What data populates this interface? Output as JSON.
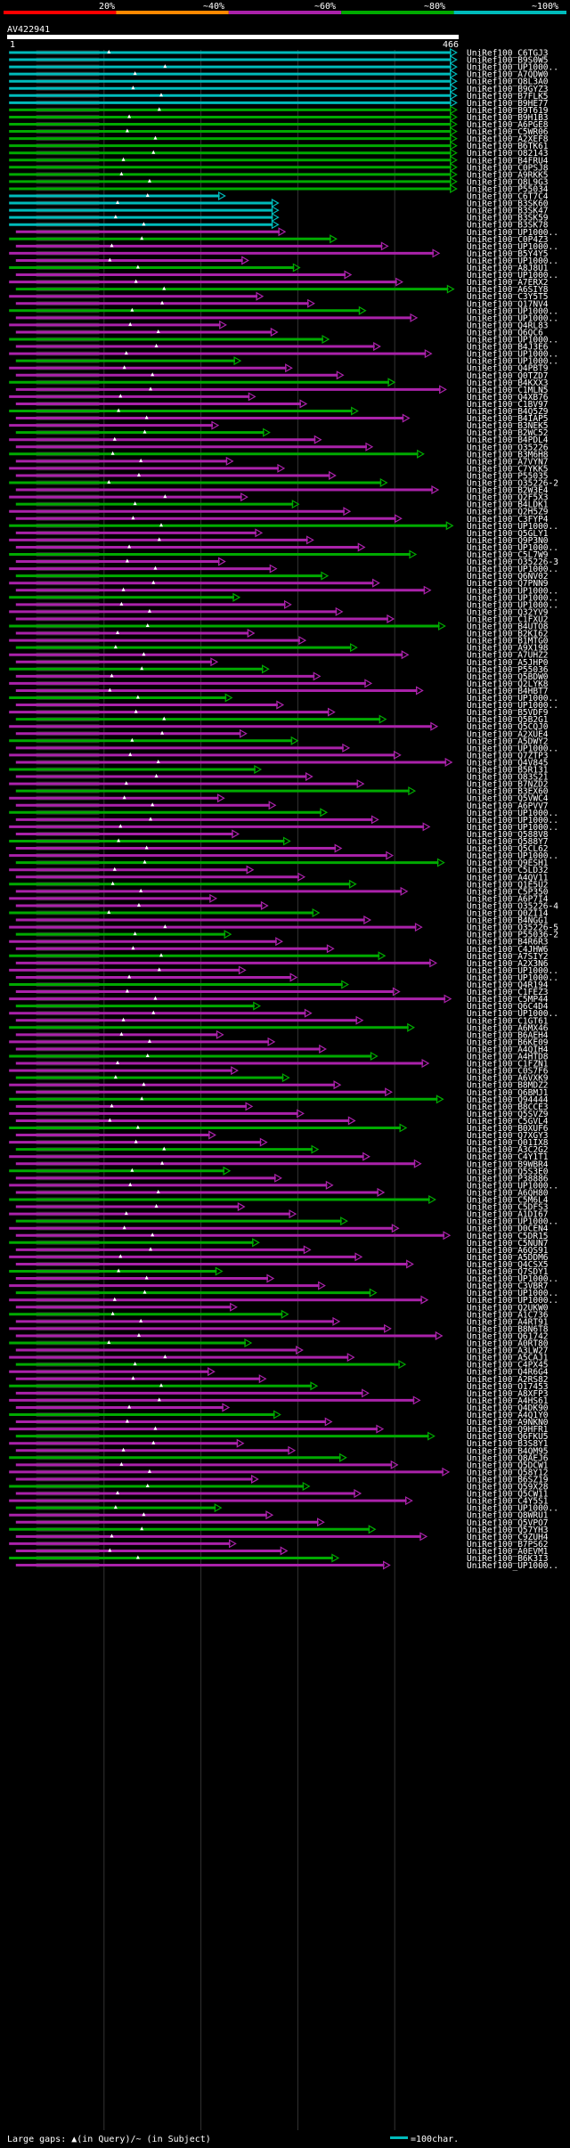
{
  "chart_data": {
    "type": "alignment-overview",
    "title": "AV422941",
    "query_length": 466,
    "axis_start_label": "1",
    "axis_end_label": "466",
    "legend_top": {
      "ticks": [
        "20%",
        "~40%",
        "~60%",
        "~80%",
        "~100%"
      ],
      "colors": [
        "#ff0000",
        "#ff8800",
        "#aa22aa",
        "#00aa00",
        "#00bbbb"
      ]
    },
    "footer": {
      "gaps_text": "Large gaps: ▲(in Query)/~ (in Subject)",
      "scale_text": "=100char.",
      "scale_color": "#00bbbb"
    },
    "hits": [
      "UniRef100_C6TGJ3",
      "UniRef100_B9S0W5",
      "UniRef100_UP1000..",
      "UniRef100_A7QDW0",
      "UniRef100_Q8L3A0",
      "UniRef100_B9GYZ3",
      "UniRef100_B7FLK5",
      "UniRef100_B9HE77",
      "UniRef100_B9T619",
      "UniRef100_B9H1B3",
      "UniRef100_A6PGE8",
      "UniRef100_C5WR06",
      "UniRef100_A2XEF8",
      "UniRef100_B6TK61",
      "UniRef100_O82143",
      "UniRef100_B4FRU4",
      "UniRef100_C0PSJ8",
      "UniRef100_A9RKK5",
      "UniRef100_Q8L9G3",
      "UniRef100_P55034",
      "UniRef100_C6T7C4",
      "UniRef100_B3SK60",
      "UniRef100_B3SK47",
      "UniRef100_B3SK59",
      "UniRef100_B3SK78",
      "UniRef100_UP1000..",
      "UniRef100_C0P4Z3",
      "UniRef100_UP1000..",
      "UniRef100_B5Y4Y5",
      "UniRef100_UP1000..",
      "UniRef100_A8J8U1",
      "UniRef100_UP1000..",
      "UniRef100_A7ERX2",
      "UniRef100_A6SIY8",
      "UniRef100_C3Y5T5",
      "UniRef100_Q17NV4",
      "UniRef100_UP1000..",
      "UniRef100_UP1000..",
      "UniRef100_Q4RL83",
      "UniRef100_Q6QC6",
      "UniRef100_UP1000..",
      "UniRef100_B4J3E6",
      "UniRef100_UP1000..",
      "UniRef100_UP1000..",
      "UniRef100_Q4PBT9",
      "UniRef100_Q0TZD7",
      "UniRef100_B4KXX3",
      "UniRef100_C1MLN5",
      "UniRef100_Q4XB76",
      "UniRef100_C1BV97",
      "UniRef100_B4Q5Z9",
      "UniRef100_B4IAP5",
      "UniRef100_B3NEK5",
      "UniRef100_B2WC52",
      "UniRef100_B4PDL4",
      "UniRef100_O35226",
      "UniRef100_B3M6H8",
      "UniRef100_A7VYN7",
      "UniRef100_C7YKK5",
      "UniRef100_P55035",
      "UniRef100_O35226-2",
      "UniRef100_B2W3E4",
      "UniRef100_Q2F5X3",
      "UniRef100_B4LDK1",
      "UniRef100_Q2H5Z9",
      "UniRef100_C3FYP4",
      "UniRef100_UP1000..",
      "UniRef100_Q5GLY1",
      "UniRef100_Q9P3N0",
      "UniRef100_UP1000..",
      "UniRef100_C5L7W9",
      "UniRef100_O35226-3",
      "UniRef100_UP1000..",
      "UniRef100_Q6NV02",
      "UniRef100_Q7PNN9",
      "UniRef100_UP1000..",
      "UniRef100_UP1000..",
      "UniRef100_UP1000..",
      "UniRef100_Q32YV9",
      "UniRef100_C1FXU2",
      "UniRef100_B4UTO8",
      "UniRef100_B2KI62",
      "UniRef100_B1MTG0",
      "UniRef100_A9X198",
      "UniRef100_A7UHZ2",
      "UniRef100_A5JHP0",
      "UniRef100_P55036",
      "UniRef100_Q5BDW0",
      "UniRef100_Q2LYK8",
      "UniRef100_B4HBT7",
      "UniRef100_UP1000..",
      "UniRef100_UP1000..",
      "UniRef100_B5VDF9",
      "UniRef100_Q5B2G1",
      "UniRef100_Q5CQJ0",
      "UniRef100_A2XUE4",
      "UniRef100_A5DWY2",
      "UniRef100_UP1000..",
      "UniRef100_Q7ZTP3",
      "UniRef100_Q4V845",
      "UniRef100_B5R131",
      "UniRef100_O83S21",
      "UniRef100_B7NZD2",
      "UniRef100_B3EX60",
      "UniRef100_Q5VWC4",
      "UniRef100_A6PVV7",
      "UniRef100_UP1000..",
      "UniRef100_UP1000..",
      "UniRef100_UP1000..",
      "UniRef100_Q588V8",
      "UniRef100_Q588Y7",
      "UniRef100_Q5CL62",
      "UniRef100_UP1000..",
      "UniRef100_Q9ESH1",
      "UniRef100_C5LD32",
      "UniRef100_A4QV11",
      "UniRef100_Q1E5U2",
      "UniRef100_C5P350",
      "UniRef100_A6P7I4",
      "UniRef100_O35226-4",
      "UniRef100_Q0ZI14",
      "UniRef100_B4NGG1",
      "UniRef100_O35226-5",
      "UniRef100_P55036-2",
      "UniRef100_B4R6R3",
      "UniRef100_C4JHW6",
      "UniRef100_A7SIY2",
      "UniRef100_A2X3N6",
      "UniRef100_UP1000..",
      "UniRef100_UP1000..",
      "UniRef100_Q4R194",
      "UniRef100_C1FEZ3",
      "UniRef100_C5MP44",
      "UniRef100_Q6C4D4",
      "UniRef100_UP1000..",
      "UniRef100_C1GT61",
      "UniRef100_A6MX46",
      "UniRef100_B6AEH4",
      "UniRef100_B6KE09",
      "UniRef100_A4QIH4",
      "UniRef100_A4HTD8",
      "UniRef100_C1FZN1",
      "UniRef100_C0S7F6",
      "UniRef100_A6VXK9",
      "UniRef100_B8MDZ2",
      "UniRef100_Q6BMJ1",
      "UniRef100_Q94444",
      "UniRef100_B8CCE3",
      "UniRef100_Q5SVZ9",
      "UniRef100_C5GVL4",
      "UniRef100_B0XUF6",
      "UniRef100_Q7XGY3",
      "UniRef100_Q01IX8",
      "UniRef100_A3C2G2",
      "UniRef100_C4Y1T1",
      "UniRef100_B9WBR4",
      "UniRef100_Q5S3E0",
      "UniRef100_P38886",
      "UniRef100_UP1000..",
      "UniRef100_A6QH80",
      "UniRef100_C5M6L4",
      "UniRef100_C5DFS3",
      "UniRef100_A1DI67",
      "UniRef100_UP1000..",
      "UniRef100_D0CEN4",
      "UniRef100_C5DR15",
      "UniRef100_C5NUN7",
      "UniRef100_A6QS91",
      "UniRef100_A5DDM6",
      "UniRef100_Q4CSX5",
      "UniRef100_Q7SDY1",
      "UniRef100_UP1000..",
      "UniRef100_C3VBR7",
      "UniRef100_UP1000..",
      "UniRef100_UP1000..",
      "UniRef100_Q2UKW0",
      "UniRef100_A1C736",
      "UniRef100_A4RT91",
      "UniRef100_B8N6T8",
      "UniRef100_Q61742",
      "UniRef100_A0RT80",
      "UniRef100_A3LW27",
      "UniRef100_A5CAJ1",
      "UniRef100_C4PX45",
      "UniRef100_Q4R6G4",
      "UniRef100_A2RS82",
      "UniRef100_O17453",
      "UniRef100_A8XFP3",
      "UniRef100_A4HS61",
      "UniRef100_Q4DK90",
      "UniRef100_A4Q1Y0",
      "UniRef100_A9NKN0",
      "UniRef100_Q9HFR1",
      "UniRef100_Q6FKU5",
      "UniRef100_B3S8Y1",
      "UniRef100_B4QM95",
      "UniRef100_Q8AEJ6",
      "UniRef100_Q5DCW1",
      "UniRef100_Q58Y12",
      "UniRef100_B6SZ19",
      "UniRef100_Q59X28",
      "UniRef100_Q5CW11",
      "UniRef100_C4Y5S1",
      "UniRef100_UP1000..",
      "UniRef100_Q8WRU1",
      "UniRef100_Q5VPO7",
      "UniRef100_Q57YH3",
      "UniRef100_C9ZUH4",
      "UniRef100_B7PS62",
      "UniRef100_A0EVM1",
      "UniRef100_B6K3I3",
      "UniRef100_UP1000.."
    ]
  }
}
